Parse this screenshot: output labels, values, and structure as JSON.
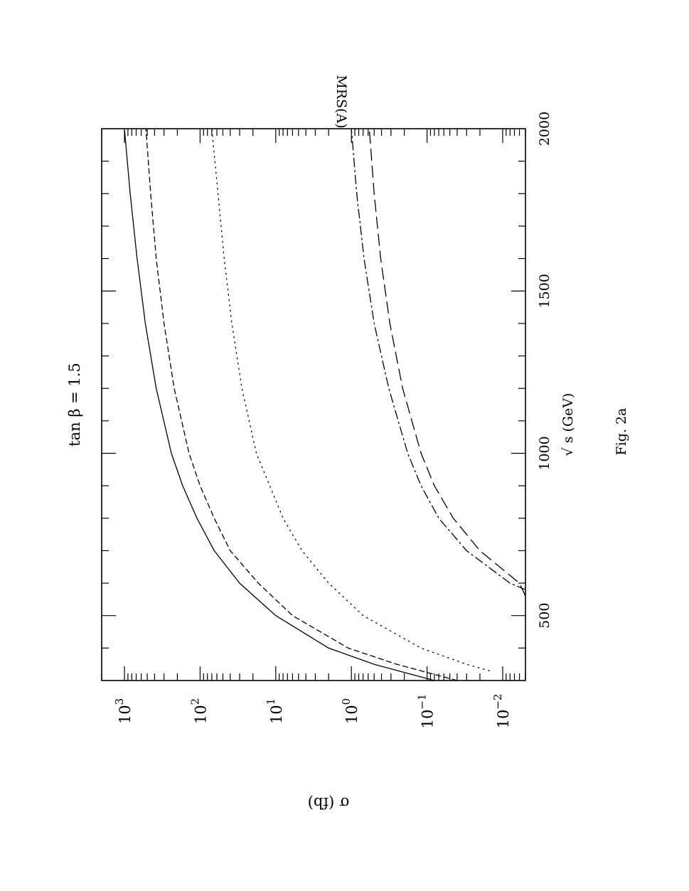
{
  "chart_data": {
    "type": "line",
    "title": "tan β = 1.5",
    "corner_label": "MRS(A)",
    "xlabel": "√ s   (GeV)",
    "ylabel": "σ (fb)",
    "caption": "Fig. 2a",
    "x_scale": "linear",
    "y_scale": "log",
    "xlim": [
      300,
      2000
    ],
    "ylim": [
      0.005,
      2000
    ],
    "x_ticks": [
      {
        "value": 500,
        "label": "500"
      },
      {
        "value": 1000,
        "label": "1000"
      },
      {
        "value": 1500,
        "label": "1500"
      },
      {
        "value": 2000,
        "label": "2000"
      }
    ],
    "y_ticks": [
      {
        "value": 0.01,
        "base": "10",
        "exp": "−2"
      },
      {
        "value": 0.1,
        "base": "10",
        "exp": "−1"
      },
      {
        "value": 1,
        "base": "10",
        "exp": "0"
      },
      {
        "value": 10,
        "base": "10",
        "exp": "1"
      },
      {
        "value": 100,
        "base": "10",
        "exp": "2"
      },
      {
        "value": 1000,
        "base": "10",
        "exp": "3"
      }
    ],
    "x_minor_step": 100,
    "series": [
      {
        "style": "solid",
        "x": [
          300,
          350,
          400,
          500,
          600,
          700,
          800,
          900,
          1000,
          1200,
          1400,
          1600,
          1800,
          2000
        ],
        "y": [
          0.08,
          0.5,
          2,
          10,
          30,
          65,
          110,
          170,
          240,
          380,
          530,
          680,
          840,
          1000
        ]
      },
      {
        "style": "dashed",
        "x": [
          300,
          350,
          400,
          500,
          600,
          700,
          800,
          900,
          1000,
          1200,
          1400,
          1600,
          1800,
          2000
        ],
        "y": [
          0.04,
          0.25,
          1.1,
          6,
          17,
          40,
          65,
          100,
          140,
          220,
          300,
          380,
          450,
          520
        ]
      },
      {
        "style": "dotted",
        "x": [
          330,
          350,
          400,
          500,
          600,
          700,
          800,
          900,
          1000,
          1200,
          1400,
          1600,
          1800,
          2000
        ],
        "y": [
          0.015,
          0.03,
          0.12,
          0.7,
          2,
          4.5,
          8,
          12,
          18,
          28,
          38,
          48,
          58,
          70
        ]
      },
      {
        "style": "dashdot",
        "x": [
          580,
          600,
          700,
          800,
          900,
          1000,
          1200,
          1400,
          1600,
          1800,
          2000
        ],
        "y": [
          0.004,
          0.008,
          0.03,
          0.07,
          0.12,
          0.18,
          0.32,
          0.5,
          0.68,
          0.85,
          1.0
        ]
      },
      {
        "style": "longdash",
        "x": [
          560,
          600,
          700,
          800,
          900,
          1000,
          1200,
          1400,
          1600,
          1800,
          2000
        ],
        "y": [
          0.004,
          0.006,
          0.02,
          0.045,
          0.08,
          0.12,
          0.21,
          0.31,
          0.41,
          0.5,
          0.58
        ]
      }
    ]
  }
}
